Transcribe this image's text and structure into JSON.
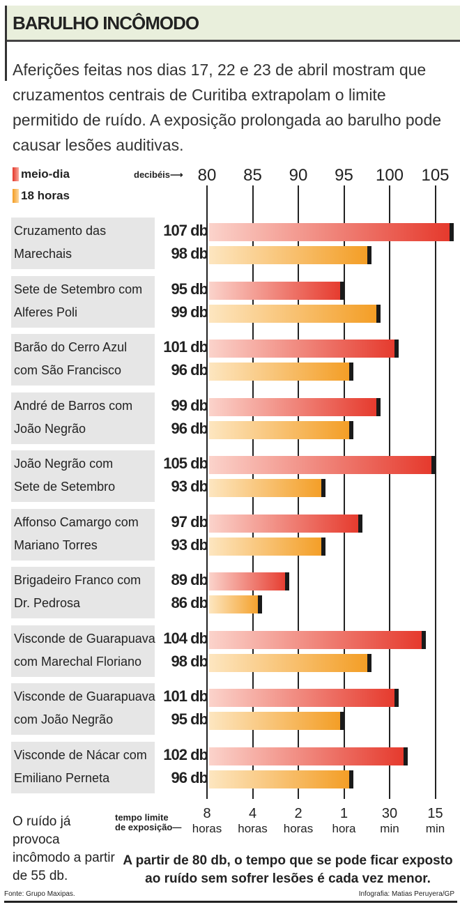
{
  "title": "BARULHO INCÔMODO",
  "intro": "Aferições feitas nos dias 17, 22 e 23 de abril mostram que cruzamentos centrais de Curitiba extrapolam o limite permitido de ruído. A exposição prolongada ao barulho pode causar lesões auditivas.",
  "colors": {
    "meio_dia": "#e5372a",
    "18_horas": "#f39c22",
    "header_bg": "#e9efdc"
  },
  "chart_data": {
    "type": "bar",
    "orientation": "horizontal",
    "xlabel": "decibéis",
    "xlim": [
      80,
      107
    ],
    "ticks": [
      {
        "db": 80,
        "label": "80",
        "time": "8",
        "unit": "horas"
      },
      {
        "db": 85,
        "label": "85",
        "time": "4",
        "unit": "horas"
      },
      {
        "db": 90,
        "label": "90",
        "time": "2",
        "unit": "horas"
      },
      {
        "db": 95,
        "label": "95",
        "time": "1",
        "unit": "hora"
      },
      {
        "db": 100,
        "label": "100",
        "time": "30",
        "unit": "min"
      },
      {
        "db": 105,
        "label": "105",
        "time": "15",
        "unit": "min"
      }
    ],
    "time_label": [
      "tempo limite",
      "de exposição—"
    ],
    "legend": [
      "meio-dia",
      "18 horas"
    ],
    "categories": [
      [
        "Cruzamento das",
        "Marechais"
      ],
      [
        "Sete de Setembro com",
        "Alferes Poli"
      ],
      [
        "Barão do Cerro Azul",
        "com São Francisco"
      ],
      [
        "André de Barros com",
        "João Negrão"
      ],
      [
        "João Negrão com",
        "Sete de Setembro"
      ],
      [
        "Affonso Camargo com",
        "Mariano Torres"
      ],
      [
        "Brigadeiro Franco com",
        "Dr. Pedrosa"
      ],
      [
        "Visconde de Guarapuava",
        "com Marechal Floriano"
      ],
      [
        "Visconde de Guarapuava",
        "com João Negrão"
      ],
      [
        "Visconde de Nácar com",
        "Emiliano Perneta"
      ]
    ],
    "series": [
      {
        "name": "meio-dia",
        "values": [
          107,
          95,
          101,
          99,
          105,
          97,
          89,
          104,
          101,
          102
        ]
      },
      {
        "name": "18 horas",
        "values": [
          98,
          99,
          96,
          96,
          93,
          93,
          86,
          98,
          95,
          96
        ]
      }
    ],
    "value_suffix": " db"
  },
  "note": "O ruído já provoca incômodo a partir de 55 db.",
  "footer": "A partir de 80 db, o tempo que se pode ficar exposto ao ruído sem sofrer lesões é cada vez menor.",
  "source": "Fonte: Grupo Maxipas.",
  "credit": "Infografia: Matias Peruyera/GP"
}
